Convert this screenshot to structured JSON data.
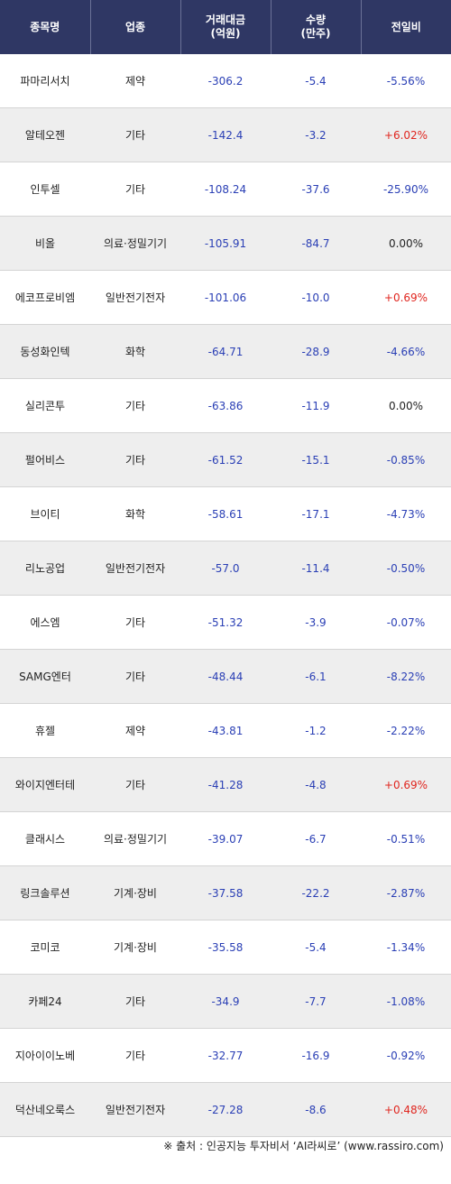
{
  "headers": [
    "종목명",
    "업종",
    "거래대금\n(억원)",
    "수량\n(만주)",
    "전일비"
  ],
  "rows": [
    {
      "name": "파마리서치",
      "sector": "제약",
      "amount": "-306.2",
      "volume": "-5.4",
      "change": "-5.56%"
    },
    {
      "name": "알테오젠",
      "sector": "기타",
      "amount": "-142.4",
      "volume": "-3.2",
      "change": "+6.02%"
    },
    {
      "name": "인투셀",
      "sector": "기타",
      "amount": "-108.24",
      "volume": "-37.6",
      "change": "-25.90%"
    },
    {
      "name": "비올",
      "sector": "의료·정밀기기",
      "amount": "-105.91",
      "volume": "-84.7",
      "change": "0.00%"
    },
    {
      "name": "에코프로비엠",
      "sector": "일반전기전자",
      "amount": "-101.06",
      "volume": "-10.0",
      "change": "+0.69%"
    },
    {
      "name": "동성화인텍",
      "sector": "화학",
      "amount": "-64.71",
      "volume": "-28.9",
      "change": "-4.66%"
    },
    {
      "name": "실리콘투",
      "sector": "기타",
      "amount": "-63.86",
      "volume": "-11.9",
      "change": "0.00%"
    },
    {
      "name": "펄어비스",
      "sector": "기타",
      "amount": "-61.52",
      "volume": "-15.1",
      "change": "-0.85%"
    },
    {
      "name": "브이티",
      "sector": "화학",
      "amount": "-58.61",
      "volume": "-17.1",
      "change": "-4.73%"
    },
    {
      "name": "리노공업",
      "sector": "일반전기전자",
      "amount": "-57.0",
      "volume": "-11.4",
      "change": "-0.50%"
    },
    {
      "name": "에스엠",
      "sector": "기타",
      "amount": "-51.32",
      "volume": "-3.9",
      "change": "-0.07%"
    },
    {
      "name": "SAMG엔터",
      "sector": "기타",
      "amount": "-48.44",
      "volume": "-6.1",
      "change": "-8.22%"
    },
    {
      "name": "휴젤",
      "sector": "제약",
      "amount": "-43.81",
      "volume": "-1.2",
      "change": "-2.22%"
    },
    {
      "name": "와이지엔터테",
      "sector": "기타",
      "amount": "-41.28",
      "volume": "-4.8",
      "change": "+0.69%"
    },
    {
      "name": "클래시스",
      "sector": "의료·정밀기기",
      "amount": "-39.07",
      "volume": "-6.7",
      "change": "-0.51%"
    },
    {
      "name": "링크솔루션",
      "sector": "기계·장비",
      "amount": "-37.58",
      "volume": "-22.2",
      "change": "-2.87%"
    },
    {
      "name": "코미코",
      "sector": "기계·장비",
      "amount": "-35.58",
      "volume": "-5.4",
      "change": "-1.34%"
    },
    {
      "name": "카페24",
      "sector": "기타",
      "amount": "-34.9",
      "volume": "-7.7",
      "change": "-1.08%"
    },
    {
      "name": "지아이이노베",
      "sector": "기타",
      "amount": "-32.77",
      "volume": "-16.9",
      "change": "-0.92%"
    },
    {
      "name": "덕산네오룩스",
      "sector": "일반전기전자",
      "amount": "-27.28",
      "volume": "-8.6",
      "change": "+0.48%"
    }
  ],
  "footer": "※ 출처 : 인공지능 투자비서 ‘AI라씨로’ (www.rassiro.com)",
  "colors": {
    "header_bg": "#2f3764",
    "negative": "#2a3fb5",
    "positive": "#e0261f",
    "stripe": "#eeeeee"
  }
}
